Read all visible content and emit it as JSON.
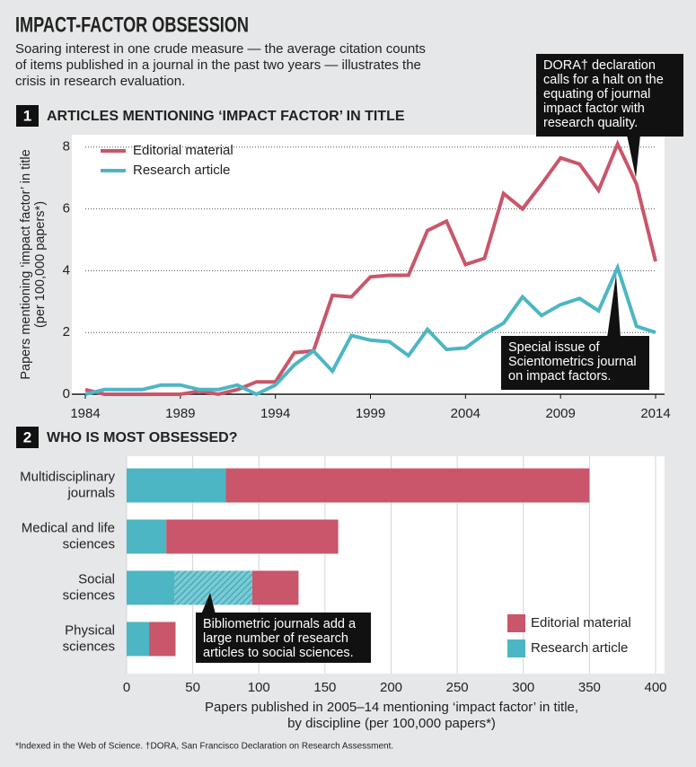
{
  "title": "IMPACT-FACTOR OBSESSION",
  "subtitle": [
    "Soaring interest in one crude measure — the average citation counts",
    "of items published in a journal in the past two years — illustrates the",
    "crisis in research evaluation."
  ],
  "chart_data": [
    {
      "type": "line",
      "number": 1,
      "heading": "ARTICLES MENTIONING ‘IMPACT FACTOR’ IN TITLE",
      "ylabel": [
        "Papers mentioning ‘impact factor’ in title",
        "(per 100,000 papers*)"
      ],
      "x": [
        1984,
        1985,
        1986,
        1987,
        1988,
        1989,
        1990,
        1991,
        1992,
        1993,
        1994,
        1995,
        1996,
        1997,
        1998,
        1999,
        2000,
        2001,
        2002,
        2003,
        2004,
        2005,
        2006,
        2007,
        2008,
        2009,
        2010,
        2011,
        2012,
        2013,
        2014
      ],
      "xlim": [
        1984,
        2014
      ],
      "xticks": [
        1984,
        1989,
        1994,
        1999,
        2004,
        2009,
        2014
      ],
      "ylim": [
        0,
        8.4
      ],
      "yticks": [
        0,
        2,
        4,
        6,
        8
      ],
      "grid": true,
      "legend": "upper left",
      "series": [
        {
          "name": "Editorial material",
          "color": "#c9566a",
          "values": [
            0.15,
            0,
            0,
            0,
            0,
            0,
            0.1,
            0,
            0.15,
            0.4,
            0.4,
            1.35,
            1.4,
            3.2,
            3.15,
            3.8,
            3.85,
            3.85,
            5.3,
            5.6,
            4.2,
            4.4,
            6.5,
            6.0,
            6.8,
            7.65,
            7.45,
            6.6,
            8.1,
            6.8,
            4.3
          ]
        },
        {
          "name": "Research article",
          "color": "#4db6c4",
          "values": [
            0,
            0.15,
            0.15,
            0.15,
            0.3,
            0.3,
            0.15,
            0.15,
            0.3,
            0,
            0.3,
            0.95,
            1.4,
            0.75,
            1.9,
            1.75,
            1.7,
            1.25,
            2.1,
            1.45,
            1.5,
            1.95,
            2.3,
            3.15,
            2.55,
            2.9,
            3.1,
            2.7,
            4.1,
            2.2,
            2.0
          ]
        }
      ],
      "annotations": [
        {
          "lines": [
            "DORA† declaration",
            "calls for a halt on the",
            "equating of journal",
            "impact factor with",
            "research quality."
          ]
        },
        {
          "lines": [
            "Special issue of",
            "Scientometrics journal",
            "on impact factors."
          ]
        }
      ]
    },
    {
      "type": "barh",
      "number": 2,
      "heading": "WHO IS MOST OBSESSED?",
      "stacked": true,
      "categories": [
        "Multidisciplinary journals",
        "Medical and life sciences",
        "Social sciences",
        "Physical sciences"
      ],
      "xlim": [
        0,
        400
      ],
      "xticks": [
        0,
        50,
        100,
        150,
        200,
        250,
        300,
        350,
        400
      ],
      "grid": true,
      "legend": "lower right",
      "xlabel": [
        "Papers published in 2005–14 mentioning ‘impact factor’ in title,",
        "by discipline (per 100,000 papers*)"
      ],
      "series": [
        {
          "name": "Research article",
          "color": "#4db6c4",
          "values": [
            75,
            30,
            36,
            17
          ]
        },
        {
          "color": "#4db6c4",
          "hatch": true,
          "values": [
            null,
            null,
            59,
            null
          ]
        },
        {
          "name": "Editorial material",
          "color": "#c9566a",
          "values": [
            275,
            130,
            35,
            20
          ]
        }
      ],
      "annotations": [
        {
          "lines": [
            "Bibliometric journals add a",
            "large number of research",
            "articles to social sciences."
          ]
        }
      ]
    }
  ],
  "footnote": "*Indexed in the Web of Science. †DORA, San Francisco Declaration on Research Assessment."
}
